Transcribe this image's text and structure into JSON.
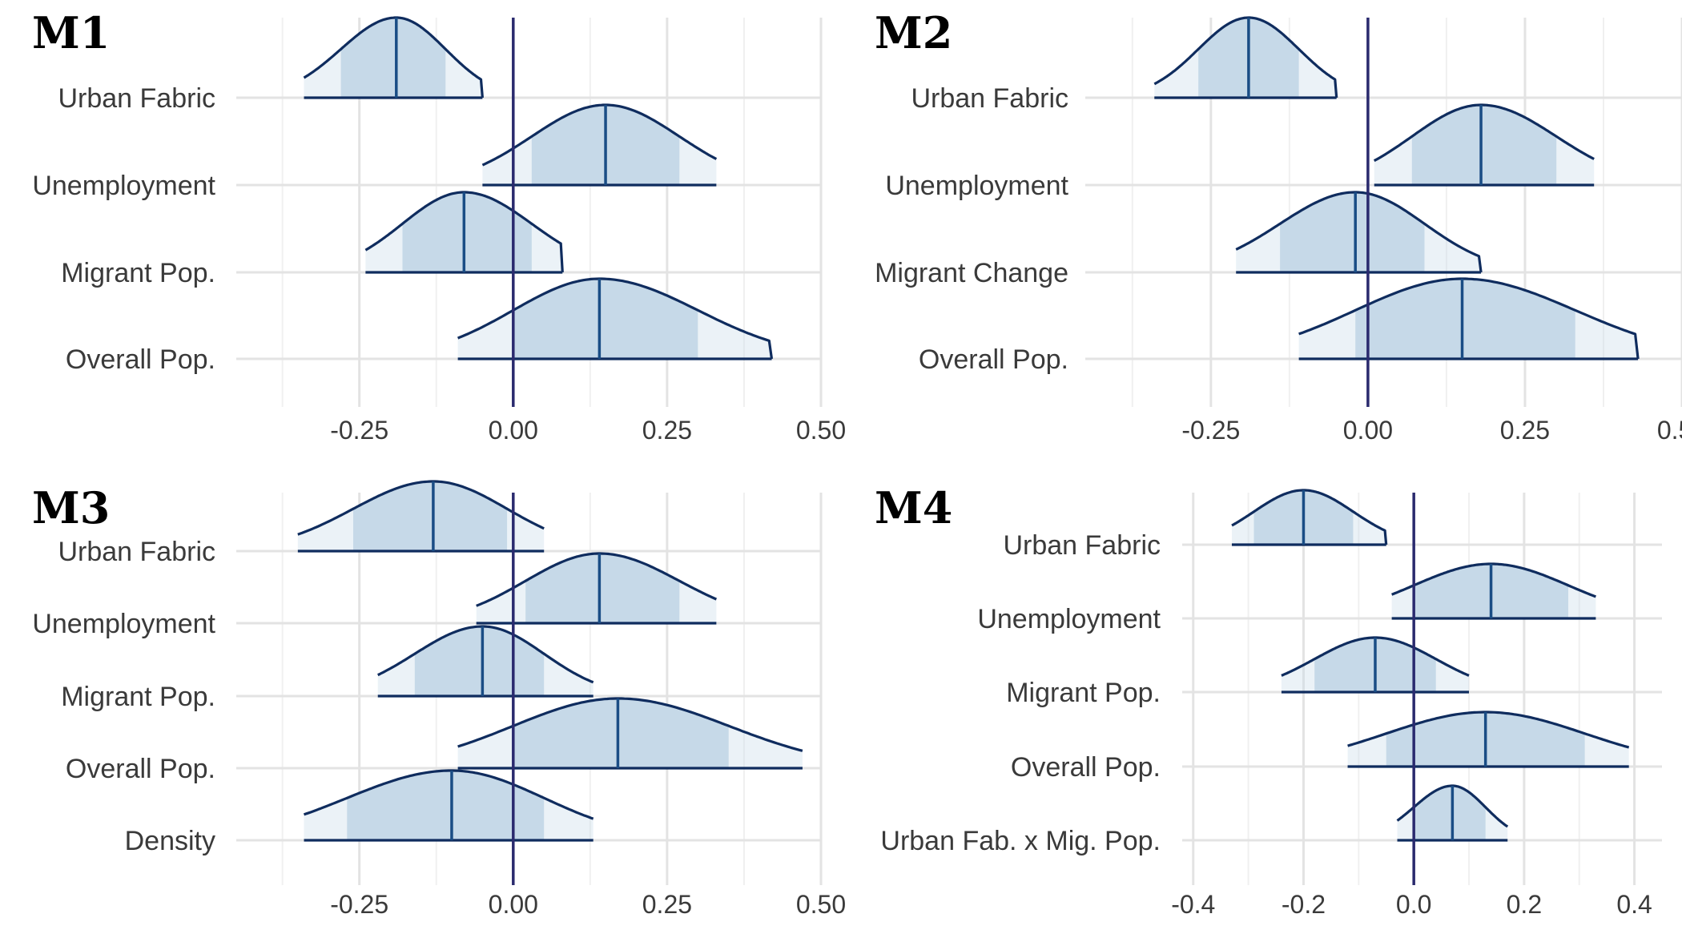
{
  "chart_data": [
    {
      "type": "area",
      "title": "M1",
      "xlim": [
        -0.45,
        0.5
      ],
      "xticks": [
        -0.25,
        0.0,
        0.25,
        0.5
      ],
      "xtick_labels": [
        "-0.25",
        "0.00",
        "0.25",
        "0.50"
      ],
      "categories": [
        "Urban Fabric",
        "Unemployment",
        "Migrant Pop.",
        "Overall Pop."
      ],
      "posteriors": [
        {
          "name": "Urban Fabric",
          "median": -0.19,
          "inner": [
            -0.28,
            -0.11
          ],
          "outer": [
            -0.34,
            -0.05
          ]
        },
        {
          "name": "Unemployment",
          "median": 0.15,
          "inner": [
            0.03,
            0.27
          ],
          "outer": [
            -0.05,
            0.33
          ]
        },
        {
          "name": "Migrant Pop.",
          "median": -0.08,
          "inner": [
            -0.18,
            0.03
          ],
          "outer": [
            -0.24,
            0.08
          ]
        },
        {
          "name": "Overall Pop.",
          "median": 0.14,
          "inner": [
            0.0,
            0.3
          ],
          "outer": [
            -0.09,
            0.42
          ]
        }
      ],
      "reference_line": 0.0,
      "grid": true
    },
    {
      "type": "area",
      "title": "M2",
      "xlim": [
        -0.45,
        0.5
      ],
      "xticks": [
        -0.25,
        0.0,
        0.25,
        0.5
      ],
      "xtick_labels": [
        "-0.25",
        "0.00",
        "0.25",
        "0.50"
      ],
      "categories": [
        "Urban Fabric",
        "Unemployment",
        "Migrant Change",
        "Overall Pop."
      ],
      "posteriors": [
        {
          "name": "Urban Fabric",
          "median": -0.19,
          "inner": [
            -0.27,
            -0.11
          ],
          "outer": [
            -0.34,
            -0.05
          ]
        },
        {
          "name": "Unemployment",
          "median": 0.18,
          "inner": [
            0.07,
            0.3
          ],
          "outer": [
            0.01,
            0.36
          ]
        },
        {
          "name": "Migrant Change",
          "median": -0.02,
          "inner": [
            -0.14,
            0.09
          ],
          "outer": [
            -0.21,
            0.18
          ]
        },
        {
          "name": "Overall Pop.",
          "median": 0.15,
          "inner": [
            -0.02,
            0.33
          ],
          "outer": [
            -0.11,
            0.43
          ]
        }
      ],
      "reference_line": 0.0,
      "grid": true
    },
    {
      "type": "area",
      "title": "M3",
      "xlim": [
        -0.45,
        0.5
      ],
      "xticks": [
        -0.25,
        0.0,
        0.25,
        0.5
      ],
      "xtick_labels": [
        "-0.25",
        "0.00",
        "0.25",
        "0.50"
      ],
      "categories": [
        "Urban Fabric",
        "Unemployment",
        "Migrant Pop.",
        "Overall Pop.",
        "Density"
      ],
      "posteriors": [
        {
          "name": "Urban Fabric",
          "median": -0.13,
          "inner": [
            -0.26,
            -0.01
          ],
          "outer": [
            -0.35,
            0.05
          ]
        },
        {
          "name": "Unemployment",
          "median": 0.14,
          "inner": [
            0.02,
            0.27
          ],
          "outer": [
            -0.06,
            0.33
          ]
        },
        {
          "name": "Migrant Pop.",
          "median": -0.05,
          "inner": [
            -0.16,
            0.05
          ],
          "outer": [
            -0.22,
            0.13
          ]
        },
        {
          "name": "Overall Pop.",
          "median": 0.17,
          "inner": [
            0.0,
            0.35
          ],
          "outer": [
            -0.09,
            0.47
          ]
        },
        {
          "name": "Density",
          "median": -0.1,
          "inner": [
            -0.27,
            0.05
          ],
          "outer": [
            -0.34,
            0.13
          ]
        }
      ],
      "reference_line": 0.0,
      "grid": true
    },
    {
      "type": "area",
      "title": "M4",
      "xlim": [
        -0.42,
        0.45
      ],
      "xticks": [
        -0.4,
        -0.2,
        0.0,
        0.2,
        0.4
      ],
      "xtick_labels": [
        "-0.4",
        "-0.2",
        "0.0",
        "0.2",
        "0.4"
      ],
      "categories": [
        "Urban Fabric",
        "Unemployment",
        "Migrant Pop.",
        "Overall Pop.",
        "Urban Fab. x Mig. Pop."
      ],
      "posteriors": [
        {
          "name": "Urban Fabric",
          "median": -0.2,
          "inner": [
            -0.29,
            -0.11
          ],
          "outer": [
            -0.33,
            -0.05
          ]
        },
        {
          "name": "Unemployment",
          "median": 0.14,
          "inner": [
            0.0,
            0.28
          ],
          "outer": [
            -0.04,
            0.33
          ]
        },
        {
          "name": "Migrant Pop.",
          "median": -0.07,
          "inner": [
            -0.18,
            0.04
          ],
          "outer": [
            -0.24,
            0.1
          ]
        },
        {
          "name": "Overall Pop.",
          "median": 0.13,
          "inner": [
            -0.05,
            0.31
          ],
          "outer": [
            -0.12,
            0.39
          ]
        },
        {
          "name": "Urban Fab. x Mig. Pop.",
          "median": 0.07,
          "inner": [
            0.0,
            0.13
          ],
          "outer": [
            -0.03,
            0.17
          ]
        }
      ],
      "reference_line": 0.0,
      "grid": true
    }
  ],
  "colors": {
    "fill": "#c6d9e8",
    "outline": "#0f2c5e",
    "median_line": "#1a4d85",
    "zero_line": "#2a2a6e",
    "grid_major": "#e3e3e3",
    "grid_minor": "#f0f0f0",
    "tick_text": "#3a3a3a",
    "title_text": "#000000"
  }
}
